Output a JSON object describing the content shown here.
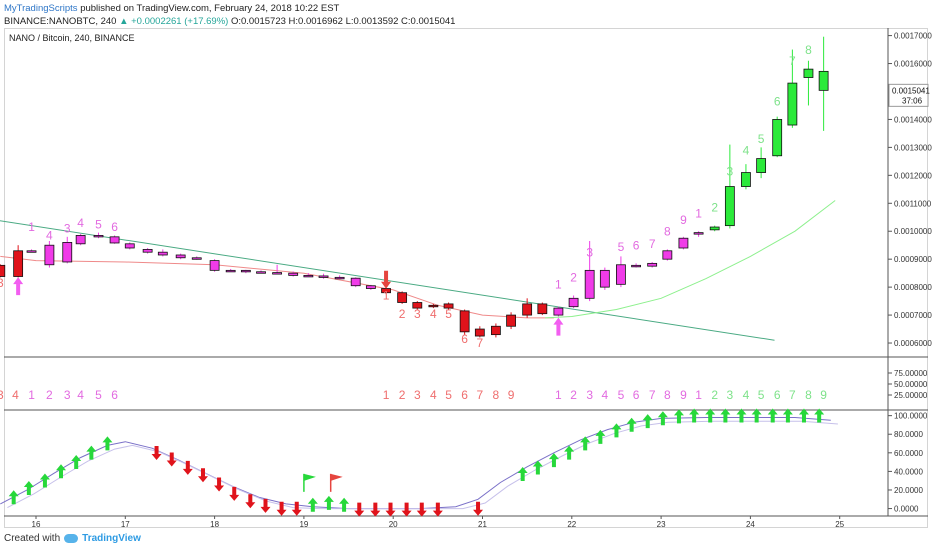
{
  "header": {
    "brand": "MyTradingScripts",
    "published": "published on TradingView.com, February 24, 2018 10:22 EST",
    "symbol": "BINANCE:NANOBTC, 240",
    "change": "▲ +0.0002261 (+17.69%)",
    "ohlc": "O:0.0015723 H:0.0016962 L:0.0013592 C:0.0015041"
  },
  "chart_title": "NANO / Bitcoin, 240, BINANCE",
  "price_tag": "0.0015041",
  "countdown": "37:06",
  "footer": {
    "created_with": "Created with",
    "logo_text": "TradingView"
  },
  "colors": {
    "up_candle": "#2bea3a",
    "down_candle": "#e0131b",
    "magenta_candle": "#f03be8",
    "setup_red": "#ef6e6e",
    "setup_magenta": "#e26ae0",
    "setup_green": "#7ee28a",
    "trendline": "#4aaa83",
    "ema_red": "#ef8a8a",
    "ema_green": "#8df08d",
    "osc_line": "#7a70c8"
  },
  "chart_data": {
    "type": "candlestick",
    "x_tick_labels": [
      "16",
      "17",
      "18",
      "19",
      "20",
      "21",
      "22",
      "23",
      "24",
      "25"
    ],
    "price_axis": {
      "ticks": [
        "0.0017000",
        "0.0016000",
        "0.0015041",
        "0.0014000",
        "0.0013000",
        "0.0012000",
        "0.0011000",
        "0.0010000",
        "0.0009000",
        "0.0008000",
        "0.0007000",
        "0.0006000"
      ],
      "ylim": [
        0.00055,
        0.00172
      ]
    },
    "candles": [
      {
        "x": 15.6,
        "o": 0.000878,
        "h": 0.000882,
        "l": 0.000835,
        "c": 0.000838,
        "col": "r"
      },
      {
        "x": 15.8,
        "o": 0.000838,
        "h": 0.00095,
        "l": 0.000835,
        "c": 0.00093,
        "col": "r"
      },
      {
        "x": 15.95,
        "o": 0.00093,
        "h": 0.000935,
        "l": 0.000925,
        "c": 0.000928,
        "col": "m"
      },
      {
        "x": 16.15,
        "o": 0.00088,
        "h": 0.000965,
        "l": 0.00087,
        "c": 0.00095,
        "col": "m"
      },
      {
        "x": 16.35,
        "o": 0.00089,
        "h": 0.00098,
        "l": 0.000885,
        "c": 0.00096,
        "col": "m"
      },
      {
        "x": 16.5,
        "o": 0.000955,
        "h": 0.00099,
        "l": 0.00095,
        "c": 0.000985,
        "col": "m"
      },
      {
        "x": 16.7,
        "o": 0.00098,
        "h": 0.000995,
        "l": 0.000975,
        "c": 0.000985,
        "col": "m"
      },
      {
        "x": 16.88,
        "o": 0.00098,
        "h": 0.000985,
        "l": 0.000955,
        "c": 0.000958,
        "col": "m"
      },
      {
        "x": 17.05,
        "o": 0.000955,
        "h": 0.00096,
        "l": 0.000935,
        "c": 0.00094,
        "col": "m"
      },
      {
        "x": 17.25,
        "o": 0.000935,
        "h": 0.00094,
        "l": 0.00092,
        "c": 0.000925,
        "col": "m"
      },
      {
        "x": 17.42,
        "o": 0.000925,
        "h": 0.000935,
        "l": 0.00091,
        "c": 0.000915,
        "col": "m"
      },
      {
        "x": 17.62,
        "o": 0.000915,
        "h": 0.00092,
        "l": 0.0009,
        "c": 0.000905,
        "col": "m"
      },
      {
        "x": 17.8,
        "o": 0.000905,
        "h": 0.00091,
        "l": 0.000898,
        "c": 0.0009,
        "col": "m"
      },
      {
        "x": 18.0,
        "o": 0.000895,
        "h": 0.0009,
        "l": 0.000855,
        "c": 0.00086,
        "col": "m"
      },
      {
        "x": 18.18,
        "o": 0.00086,
        "h": 0.000865,
        "l": 0.000855,
        "c": 0.000858,
        "col": "m"
      },
      {
        "x": 18.35,
        "o": 0.00086,
        "h": 0.000862,
        "l": 0.00085,
        "c": 0.000855,
        "col": "m"
      },
      {
        "x": 18.52,
        "o": 0.000855,
        "h": 0.00086,
        "l": 0.00085,
        "c": 0.000852,
        "col": "m"
      },
      {
        "x": 18.7,
        "o": 0.000852,
        "h": 0.00088,
        "l": 0.000848,
        "c": 0.00085,
        "col": "m"
      },
      {
        "x": 18.88,
        "o": 0.00085,
        "h": 0.000856,
        "l": 0.000838,
        "c": 0.000842,
        "col": "m"
      },
      {
        "x": 19.05,
        "o": 0.000842,
        "h": 0.00085,
        "l": 0.000838,
        "c": 0.00084,
        "col": "m"
      },
      {
        "x": 19.22,
        "o": 0.00084,
        "h": 0.000848,
        "l": 0.00083,
        "c": 0.000835,
        "col": "m"
      },
      {
        "x": 19.4,
        "o": 0.000835,
        "h": 0.000842,
        "l": 0.000828,
        "c": 0.000832,
        "col": "m"
      },
      {
        "x": 19.58,
        "o": 0.000832,
        "h": 0.000835,
        "l": 0.0008,
        "c": 0.000805,
        "col": "m"
      },
      {
        "x": 19.75,
        "o": 0.000805,
        "h": 0.000808,
        "l": 0.00079,
        "c": 0.000795,
        "col": "m"
      },
      {
        "x": 19.92,
        "o": 0.000795,
        "h": 0.0008,
        "l": 0.000775,
        "c": 0.00078,
        "col": "r"
      },
      {
        "x": 20.1,
        "o": 0.00078,
        "h": 0.000785,
        "l": 0.00074,
        "c": 0.000745,
        "col": "r"
      },
      {
        "x": 20.27,
        "o": 0.000745,
        "h": 0.00075,
        "l": 0.00072,
        "c": 0.000725,
        "col": "r"
      },
      {
        "x": 20.45,
        "o": 0.000735,
        "h": 0.00074,
        "l": 0.000725,
        "c": 0.00073,
        "col": "r"
      },
      {
        "x": 20.62,
        "o": 0.00074,
        "h": 0.000745,
        "l": 0.00072,
        "c": 0.000725,
        "col": "r"
      },
      {
        "x": 20.8,
        "o": 0.000715,
        "h": 0.00072,
        "l": 0.00063,
        "c": 0.00064,
        "col": "r"
      },
      {
        "x": 20.97,
        "o": 0.00065,
        "h": 0.00066,
        "l": 0.00062,
        "c": 0.000625,
        "col": "r"
      },
      {
        "x": 21.15,
        "o": 0.00066,
        "h": 0.00067,
        "l": 0.00062,
        "c": 0.00063,
        "col": "r"
      },
      {
        "x": 21.32,
        "o": 0.00066,
        "h": 0.00071,
        "l": 0.00065,
        "c": 0.0007,
        "col": "r"
      },
      {
        "x": 21.5,
        "o": 0.0007,
        "h": 0.00076,
        "l": 0.00069,
        "c": 0.00074,
        "col": "r"
      },
      {
        "x": 21.67,
        "o": 0.00074,
        "h": 0.000745,
        "l": 0.0007,
        "c": 0.000705,
        "col": "r"
      },
      {
        "x": 21.85,
        "o": 0.0007,
        "h": 0.00073,
        "l": 0.000695,
        "c": 0.000725,
        "col": "m"
      },
      {
        "x": 22.02,
        "o": 0.00073,
        "h": 0.00077,
        "l": 0.000725,
        "c": 0.00076,
        "col": "m"
      },
      {
        "x": 22.2,
        "o": 0.00076,
        "h": 0.000965,
        "l": 0.00075,
        "c": 0.00086,
        "col": "m"
      },
      {
        "x": 22.37,
        "o": 0.0008,
        "h": 0.00087,
        "l": 0.00079,
        "c": 0.00086,
        "col": "m"
      },
      {
        "x": 22.55,
        "o": 0.00081,
        "h": 0.00091,
        "l": 0.0008,
        "c": 0.00088,
        "col": "m"
      },
      {
        "x": 22.72,
        "o": 0.000875,
        "h": 0.000885,
        "l": 0.00087,
        "c": 0.000878,
        "col": "m"
      },
      {
        "x": 22.9,
        "o": 0.000875,
        "h": 0.00089,
        "l": 0.00087,
        "c": 0.000885,
        "col": "m"
      },
      {
        "x": 23.07,
        "o": 0.0009,
        "h": 0.000935,
        "l": 0.000895,
        "c": 0.00093,
        "col": "m"
      },
      {
        "x": 23.25,
        "o": 0.00094,
        "h": 0.00098,
        "l": 0.000935,
        "c": 0.000975,
        "col": "m"
      },
      {
        "x": 23.42,
        "o": 0.00099,
        "h": 0.001,
        "l": 0.00098,
        "c": 0.000995,
        "col": "m"
      },
      {
        "x": 23.6,
        "o": 0.001005,
        "h": 0.00102,
        "l": 0.001,
        "c": 0.001015,
        "col": "g"
      },
      {
        "x": 23.77,
        "o": 0.00102,
        "h": 0.00131,
        "l": 0.00101,
        "c": 0.00116,
        "col": "g"
      },
      {
        "x": 23.95,
        "o": 0.00116,
        "h": 0.00124,
        "l": 0.00115,
        "c": 0.00121,
        "col": "g"
      },
      {
        "x": 24.12,
        "o": 0.00121,
        "h": 0.0013,
        "l": 0.00119,
        "c": 0.00126,
        "col": "g"
      },
      {
        "x": 24.3,
        "o": 0.00127,
        "h": 0.00141,
        "l": 0.001265,
        "c": 0.0014,
        "col": "g"
      },
      {
        "x": 24.47,
        "o": 0.00138,
        "h": 0.00165,
        "l": 0.00137,
        "c": 0.00153,
        "col": "g"
      },
      {
        "x": 24.65,
        "o": 0.00155,
        "h": 0.00161,
        "l": 0.00145,
        "c": 0.00158,
        "col": "g"
      },
      {
        "x": 24.82,
        "o": 0.001572,
        "h": 0.001696,
        "l": 0.001359,
        "c": 0.001504,
        "col": "g"
      }
    ],
    "trendline": {
      "x": [
        15.55,
        24.27
      ],
      "y": [
        0.00104,
        0.00061
      ]
    },
    "ema_red": {
      "x": [
        15.6,
        16.0,
        17.0,
        18.0,
        19.0,
        20.0,
        20.5,
        21.0,
        21.5,
        21.8
      ],
      "y": [
        0.00091,
        0.000895,
        0.00089,
        0.00088,
        0.00085,
        0.00079,
        0.000735,
        0.0007,
        0.00069,
        0.00069
      ]
    },
    "ema_green": {
      "x": [
        21.7,
        22.0,
        22.5,
        23.0,
        23.5,
        24.0,
        24.5,
        24.95
      ],
      "y": [
        0.00069,
        0.000695,
        0.00072,
        0.00076,
        0.00083,
        0.00091,
        0.001,
        0.00111
      ]
    },
    "setup_numbers": {
      "labels": [
        "3",
        "1",
        "4",
        "3",
        "4",
        "5",
        "6",
        "1",
        "2",
        "3",
        "4",
        "5",
        "6",
        "7",
        "1",
        "2",
        "3",
        "5",
        "6",
        "7",
        "8",
        "9",
        "1",
        "2",
        "3",
        "4",
        "5",
        "6",
        "7",
        "8"
      ],
      "x": [
        15.6,
        15.95,
        16.15,
        16.35,
        16.5,
        16.7,
        16.88,
        19.92,
        20.1,
        20.27,
        20.45,
        20.62,
        20.8,
        20.97,
        21.85,
        22.02,
        22.2,
        22.55,
        22.72,
        22.9,
        23.07,
        23.25,
        23.42,
        23.6,
        23.77,
        23.95,
        24.12,
        24.3,
        24.47,
        24.65
      ],
      "y": [
        0.0008,
        0.001,
        0.00097,
        0.000995,
        0.001015,
        0.00101,
        0.001,
        0.000755,
        0.00069,
        0.00069,
        0.00069,
        0.00069,
        0.0006,
        0.000585,
        0.000795,
        0.00082,
        0.00091,
        0.00093,
        0.000935,
        0.00094,
        0.000985,
        0.001025,
        0.00105,
        0.00107,
        0.0012,
        0.001275,
        0.001315,
        0.00145,
        0.001595,
        0.001635
      ],
      "colors": [
        "r",
        "m",
        "m",
        "m",
        "m",
        "m",
        "m",
        "r",
        "r",
        "r",
        "r",
        "r",
        "r",
        "r",
        "m",
        "m",
        "m",
        "m",
        "m",
        "m",
        "m",
        "m",
        "m",
        "g",
        "g",
        "g",
        "g",
        "g",
        "g",
        "g"
      ]
    },
    "arrows": [
      {
        "x": 15.8,
        "y": 0.0008,
        "dir": "up",
        "col": "m"
      },
      {
        "x": 19.92,
        "y": 0.00083,
        "dir": "down",
        "col": "r"
      },
      {
        "x": 21.85,
        "y": 0.000655,
        "dir": "up",
        "col": "m"
      }
    ],
    "countdown_panel": {
      "ticks": [
        "75.00000",
        "50.00000",
        "25.00000"
      ],
      "ylim": [
        0,
        100
      ],
      "labels": [
        "3",
        "4",
        "1",
        "2",
        "3",
        "4",
        "5",
        "6",
        "1",
        "2",
        "3",
        "4",
        "5",
        "6",
        "7",
        "8",
        "9",
        "1",
        "2",
        "3",
        "4",
        "5",
        "6",
        "7",
        "8",
        "9",
        "1",
        "2",
        "3",
        "4",
        "5",
        "6",
        "7",
        "8",
        "9"
      ],
      "x": [
        15.6,
        15.77,
        15.95,
        16.15,
        16.35,
        16.5,
        16.7,
        16.88,
        19.92,
        20.1,
        20.27,
        20.45,
        20.62,
        20.8,
        20.97,
        21.15,
        21.32,
        21.85,
        22.02,
        22.2,
        22.37,
        22.55,
        22.72,
        22.9,
        23.07,
        23.25,
        23.42,
        23.6,
        23.77,
        23.95,
        24.12,
        24.3,
        24.47,
        24.65,
        24.82
      ],
      "colors": [
        "r",
        "r",
        "m",
        "m",
        "m",
        "m",
        "m",
        "m",
        "r",
        "r",
        "r",
        "r",
        "r",
        "r",
        "r",
        "r",
        "r",
        "m",
        "m",
        "m",
        "m",
        "m",
        "m",
        "m",
        "m",
        "m",
        "m",
        "g",
        "g",
        "g",
        "g",
        "g",
        "g",
        "g",
        "g"
      ]
    },
    "oscillator_panel": {
      "ticks": [
        "100.0000",
        "80.0000",
        "60.0000",
        "40.0000",
        "20.0000",
        "0.0000"
      ],
      "ylim": [
        -8,
        105
      ],
      "line_x": [
        15.6,
        15.9,
        16.2,
        16.5,
        16.8,
        17.0,
        17.3,
        17.6,
        17.9,
        18.2,
        18.5,
        18.8,
        19.1,
        19.5,
        19.9,
        20.3,
        20.7,
        20.95,
        21.2,
        21.5,
        21.8,
        22.1,
        22.4,
        22.7,
        23.0,
        23.5,
        24.0,
        24.5,
        24.9
      ],
      "line_y": [
        5,
        20,
        38,
        55,
        68,
        72,
        65,
        52,
        38,
        24,
        12,
        5,
        2,
        0,
        0,
        0,
        2,
        10,
        28,
        45,
        60,
        74,
        85,
        93,
        97,
        98,
        98,
        98,
        95
      ],
      "arrows": [
        {
          "x": 15.75,
          "v": 10,
          "dir": "up"
        },
        {
          "x": 15.92,
          "v": 20,
          "dir": "up"
        },
        {
          "x": 16.1,
          "v": 28,
          "dir": "up"
        },
        {
          "x": 16.28,
          "v": 38,
          "dir": "up"
        },
        {
          "x": 16.45,
          "v": 48,
          "dir": "up"
        },
        {
          "x": 16.62,
          "v": 58,
          "dir": "up"
        },
        {
          "x": 16.8,
          "v": 68,
          "dir": "up"
        },
        {
          "x": 17.35,
          "v": 62,
          "dir": "down"
        },
        {
          "x": 17.52,
          "v": 55,
          "dir": "down"
        },
        {
          "x": 17.7,
          "v": 46,
          "dir": "down"
        },
        {
          "x": 17.87,
          "v": 38,
          "dir": "down"
        },
        {
          "x": 18.05,
          "v": 28,
          "dir": "down"
        },
        {
          "x": 18.22,
          "v": 18,
          "dir": "down"
        },
        {
          "x": 18.4,
          "v": 10,
          "dir": "down"
        },
        {
          "x": 18.57,
          "v": 5,
          "dir": "down"
        },
        {
          "x": 18.75,
          "v": 2,
          "dir": "down"
        },
        {
          "x": 18.92,
          "v": 2,
          "dir": "down"
        },
        {
          "x": 19.1,
          "v": 2,
          "dir": "up"
        },
        {
          "x": 19.28,
          "v": 4,
          "dir": "up"
        },
        {
          "x": 19.45,
          "v": 2,
          "dir": "up"
        },
        {
          "x": 19.62,
          "v": 1,
          "dir": "down"
        },
        {
          "x": 19.8,
          "v": 1,
          "dir": "down"
        },
        {
          "x": 19.97,
          "v": 1,
          "dir": "down"
        },
        {
          "x": 20.15,
          "v": 1,
          "dir": "down"
        },
        {
          "x": 20.32,
          "v": 1,
          "dir": "down"
        },
        {
          "x": 20.5,
          "v": 1,
          "dir": "down"
        },
        {
          "x": 20.95,
          "v": 2,
          "dir": "down"
        },
        {
          "x": 21.45,
          "v": 35,
          "dir": "up"
        },
        {
          "x": 21.62,
          "v": 42,
          "dir": "up"
        },
        {
          "x": 21.8,
          "v": 50,
          "dir": "up"
        },
        {
          "x": 21.97,
          "v": 58,
          "dir": "up"
        },
        {
          "x": 22.15,
          "v": 68,
          "dir": "up"
        },
        {
          "x": 22.32,
          "v": 75,
          "dir": "up"
        },
        {
          "x": 22.5,
          "v": 82,
          "dir": "up"
        },
        {
          "x": 22.67,
          "v": 88,
          "dir": "up"
        },
        {
          "x": 22.85,
          "v": 92,
          "dir": "up"
        },
        {
          "x": 23.02,
          "v": 95,
          "dir": "up"
        },
        {
          "x": 23.2,
          "v": 97,
          "dir": "up"
        },
        {
          "x": 23.37,
          "v": 98,
          "dir": "up"
        },
        {
          "x": 23.55,
          "v": 98,
          "dir": "up"
        },
        {
          "x": 23.72,
          "v": 98,
          "dir": "up"
        },
        {
          "x": 23.9,
          "v": 98,
          "dir": "up"
        },
        {
          "x": 24.07,
          "v": 98,
          "dir": "up"
        },
        {
          "x": 24.25,
          "v": 98,
          "dir": "up"
        },
        {
          "x": 24.42,
          "v": 98,
          "dir": "up"
        },
        {
          "x": 24.6,
          "v": 98,
          "dir": "up"
        },
        {
          "x": 24.77,
          "v": 98,
          "dir": "up"
        }
      ],
      "flags": [
        {
          "x": 19.0,
          "v": 18,
          "col": "g"
        },
        {
          "x": 19.3,
          "v": 18,
          "col": "r"
        }
      ]
    }
  }
}
